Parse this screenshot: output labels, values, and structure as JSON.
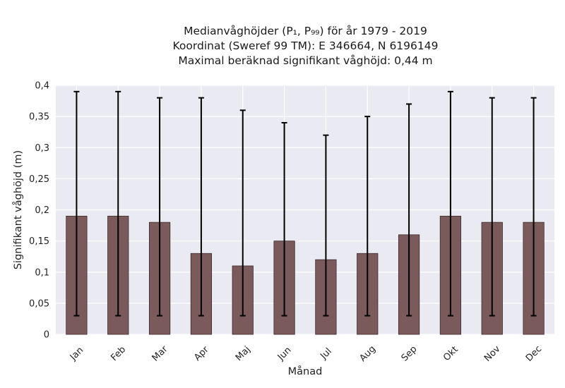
{
  "chart_data": {
    "type": "bar",
    "title_lines": [
      "Medianvåghöjder (P₁, P₉₉) för år 1979 - 2019",
      "Koordinat (Sweref 99 TM): E 346664, N 6196149",
      "Maximal beräknad signifikant våghöjd: 0,44 m"
    ],
    "xlabel": "Månad",
    "ylabel": "Signifikant våghöjd (m)",
    "categories": [
      "Jan",
      "Feb",
      "Mar",
      "Apr",
      "Maj",
      "Jun",
      "Jul",
      "Aug",
      "Sep",
      "Okt",
      "Nov",
      "Dec"
    ],
    "values": [
      0.19,
      0.19,
      0.18,
      0.13,
      0.11,
      0.15,
      0.12,
      0.13,
      0.16,
      0.19,
      0.18,
      0.18
    ],
    "err_low": [
      0.03,
      0.03,
      0.03,
      0.03,
      0.03,
      0.03,
      0.03,
      0.03,
      0.03,
      0.03,
      0.03,
      0.03
    ],
    "err_high": [
      0.39,
      0.39,
      0.38,
      0.38,
      0.36,
      0.34,
      0.32,
      0.35,
      0.37,
      0.39,
      0.38,
      0.38
    ],
    "ylim": [
      0,
      0.4
    ],
    "yticks": [
      0,
      0.05,
      0.1,
      0.15,
      0.2,
      0.25,
      0.3,
      0.35,
      0.4
    ],
    "ytick_labels": [
      "0",
      "0,05",
      "0,1",
      "0,15",
      "0,2",
      "0,25",
      "0,3",
      "0,35",
      "0,4"
    ],
    "grid": true,
    "colors": {
      "bar": "#7b5a5b",
      "bar_edge": "#3a2a2a",
      "error": "#000000",
      "background": "#eaeaf2",
      "grid": "#ffffff"
    }
  }
}
